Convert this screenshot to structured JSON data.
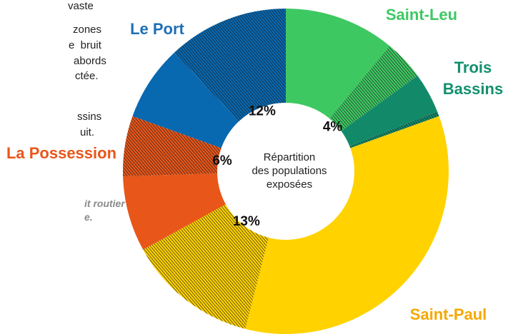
{
  "document_text": {
    "lines": [
      "vaste",
      "zones",
      "e  bruit",
      "abords",
      "ctée.",
      "ssins",
      "uit."
    ],
    "note_lines": [
      "it routier",
      "e."
    ]
  },
  "chart_data": {
    "type": "donut",
    "center_label": [
      "Répartition",
      "des populations",
      "exposées"
    ],
    "series": [
      {
        "name": "Saint-Leu",
        "color": "#3ec862",
        "label_color": "#3ec862",
        "values": [
          11,
          4
        ],
        "value_labels": [
          null,
          "4%"
        ]
      },
      {
        "name": "Trois Bassins",
        "color": "#128a6a",
        "label_color": "#13906e",
        "values": [
          4,
          0.5
        ],
        "value_labels": [
          null,
          null
        ]
      },
      {
        "name": "Saint-Paul",
        "color": "#ffd200",
        "label_color": "#f5a800",
        "values": [
          34.5,
          13
        ],
        "value_labels": [
          null,
          "13%"
        ]
      },
      {
        "name": "La Possession",
        "color": "#e8561a",
        "label_color": "#e8561a",
        "values": [
          7.5,
          6
        ],
        "value_labels": [
          null,
          "6%"
        ]
      },
      {
        "name": "Le Port",
        "color": "#0868b0",
        "label_color": "#1e6fb6",
        "values": [
          7.5,
          12
        ],
        "value_labels": [
          null,
          "12%"
        ]
      }
    ]
  }
}
